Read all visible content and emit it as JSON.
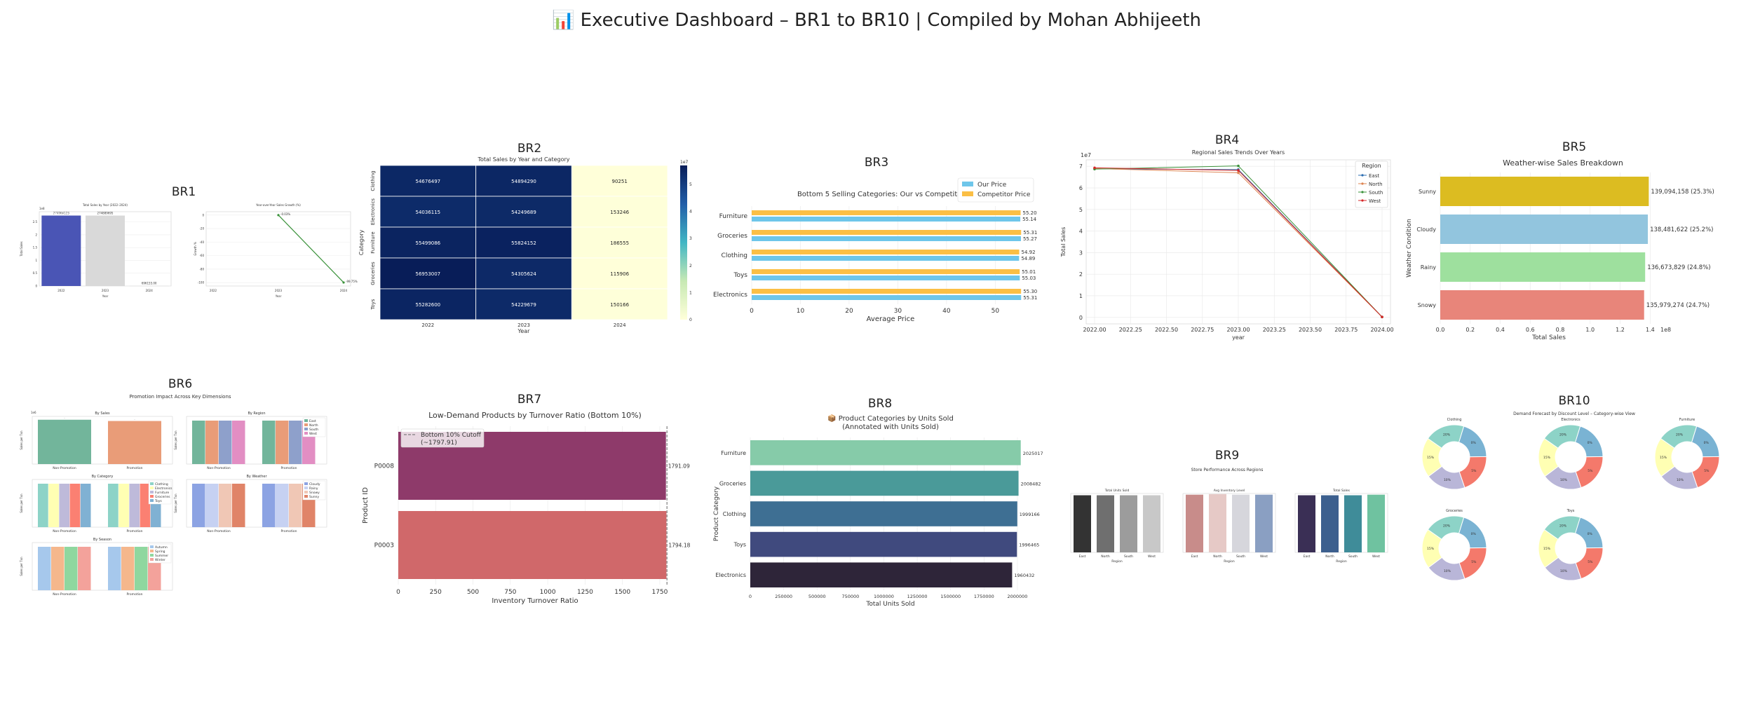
{
  "page": {
    "title": "📊 Executive Dashboard – BR1 to BR10 | Compiled by Mohan Abhijeeth"
  },
  "panels": {
    "br1": "BR1",
    "br2": "BR2",
    "br3": "BR3",
    "br4": "BR4",
    "br5": "BR5",
    "br6": "BR6",
    "br7": "BR7",
    "br8": "BR8",
    "br9": "BR9",
    "br10": "BR10"
  },
  "chart_data": [
    {
      "id": "br1a",
      "type": "bar",
      "title": "Total Sales by Year (2022–2024)",
      "categories": [
        "2022",
        "2023",
        "2024"
      ],
      "values": [
        274966123,
        274889695,
        696155
      ],
      "value_labels": [
        "274966123",
        "274889695",
        "696155.00"
      ],
      "top_text": "Overall Year 1",
      "colors": [
        "#4a55b5",
        "#d9d9d9",
        "#d9d9d9"
      ],
      "xlabel": "Year",
      "ylabel": "Total Sales"
    },
    {
      "id": "br1b",
      "type": "line",
      "title": "Year-over-Year Sales Growth (%)",
      "x": [
        "2022",
        "2023",
        "2024"
      ],
      "points": [
        {
          "x": "2023",
          "y": -0.03
        },
        {
          "x": "2024",
          "y": -99.75
        }
      ],
      "xlabel": "Year",
      "ylabel": "Growth %"
    },
    {
      "id": "br2",
      "type": "heatmap",
      "title": "Total Sales by Year and Category",
      "rows": [
        "Clothing",
        "Electronics",
        "Furniture",
        "Groceries",
        "Toys"
      ],
      "cols": [
        "2022",
        "2023",
        "2024"
      ],
      "values": [
        [
          54676497,
          54894290,
          90251
        ],
        [
          54036115,
          54249689,
          153246
        ],
        [
          55499086,
          55824152,
          186555
        ],
        [
          56953007,
          54305624,
          115906
        ],
        [
          55282600,
          54229679,
          150166
        ]
      ],
      "xlabel": "Year",
      "ylabel": "Category",
      "colorbar_ticks": [
        "0",
        "1",
        "2",
        "3",
        "4",
        "5"
      ],
      "colorbar_exp": "1e7"
    },
    {
      "id": "br3",
      "type": "bar",
      "title": "Bottom 5 Selling Categories: Our vs Competitor Price",
      "categories": [
        "Furniture",
        "Groceries",
        "Clothing",
        "Toys",
        "Electronics"
      ],
      "series": [
        {
          "name": "Our Price",
          "values": [
            55.14,
            55.27,
            54.89,
            55.03,
            55.31
          ],
          "color": "#6ec6ea"
        },
        {
          "name": "Competitor Price",
          "values": [
            55.2,
            55.31,
            54.92,
            55.01,
            55.3
          ],
          "color": "#fbbf45"
        }
      ],
      "xlabel": "Average Price",
      "xticks": [
        "0",
        "10",
        "20",
        "30",
        "40",
        "50"
      ]
    },
    {
      "id": "br4",
      "type": "line",
      "title": "Regional Sales Trends Over Years",
      "xticks": [
        "2022.00",
        "2022.25",
        "2022.50",
        "2022.75",
        "2023.00",
        "2023.25",
        "2023.50",
        "2023.75",
        "2024.00"
      ],
      "yticks": [
        "0",
        "1",
        "2",
        "3",
        "4",
        "5",
        "6",
        "7"
      ],
      "y_exp": "1e7",
      "xlabel": "year",
      "ylabel": "Total Sales",
      "legend_title": "Region",
      "series": [
        {
          "name": "East",
          "x": [
            2022,
            2023,
            2024
          ],
          "y": [
            6.88,
            6.85,
            0.02
          ],
          "color": "#2b6cb0"
        },
        {
          "name": "North",
          "x": [
            2022,
            2023,
            2024
          ],
          "y": [
            6.9,
            6.7,
            0.02
          ],
          "color": "#dd8452"
        },
        {
          "name": "South",
          "x": [
            2022,
            2023,
            2024
          ],
          "y": [
            6.87,
            7.02,
            0.02
          ],
          "color": "#3a923a"
        },
        {
          "name": "West",
          "x": [
            2022,
            2023,
            2024
          ],
          "y": [
            6.93,
            6.81,
            0.02
          ],
          "color": "#d62728"
        }
      ]
    },
    {
      "id": "br5",
      "type": "bar",
      "title": "Weather-wise Sales Breakdown",
      "categories": [
        "Sunny",
        "Cloudy",
        "Rainy",
        "Snowy"
      ],
      "values": [
        139094158,
        138481622,
        136673829,
        135979274
      ],
      "value_labels": [
        "139,094,158 (25.3%)",
        "138,481,622 (25.2%)",
        "136,673,829 (24.8%)",
        "135,979,274 (24.7%)"
      ],
      "colors": [
        "#dcbc21",
        "#92c5de",
        "#9ee09e",
        "#e8857a"
      ],
      "xlabel": "Total Sales",
      "ylabel": "Weather Condition",
      "xticks": [
        "0.0",
        "0.2",
        "0.4",
        "0.6",
        "0.8",
        "1.0",
        "1.2",
        "1.4"
      ],
      "x_exp": "1e8"
    },
    {
      "id": "br6",
      "type": "bar",
      "title": "Promotion Impact Across Key Dimensions",
      "groups": [
        "Non-Promotion",
        "Promotion"
      ],
      "subplots": [
        {
          "name": "By Sales",
          "values": [
            2.79,
            2.71
          ]
        },
        {
          "name": "By Region",
          "legend": [
            "East",
            "North",
            "South",
            "West"
          ]
        },
        {
          "name": "By Category",
          "legend": [
            "Clothing",
            "Electronics",
            "Furniture",
            "Groceries",
            "Toys"
          ]
        },
        {
          "name": "By Weather",
          "legend": [
            "Cloudy",
            "Rainy",
            "Snowy",
            "Sunny"
          ]
        },
        {
          "name": "By Season",
          "legend": [
            "Autumn",
            "Spring",
            "Summer",
            "Winter"
          ]
        }
      ],
      "ylabel": "Sales per Txn"
    },
    {
      "id": "br7",
      "type": "bar",
      "title": "Low-Demand Products by Turnover Ratio (Bottom 10%)",
      "categories": [
        "P0008",
        "P0003"
      ],
      "values": [
        1791.09,
        1794.18
      ],
      "value_labels": [
        "1791.09",
        "1794.18"
      ],
      "colors": [
        "#8e3a6a",
        "#d0686a"
      ],
      "cutoff": 1797.91,
      "legend": [
        "Bottom 10% Cutoff",
        "(~1797.91)"
      ],
      "xlabel": "Inventory Turnover Ratio",
      "ylabel": "Product ID",
      "xticks": [
        0,
        250,
        500,
        750,
        1000,
        1250,
        1500,
        1750
      ]
    },
    {
      "id": "br8",
      "type": "bar",
      "title": "📦 Product Categories by Units Sold",
      "subtitle": "(Annotated with Units Sold)",
      "categories": [
        "Furniture",
        "Groceries",
        "Clothing",
        "Toys",
        "Electronics"
      ],
      "values": [
        2025017,
        2008482,
        1999166,
        1996465,
        1960432
      ],
      "value_labels": [
        "2025017",
        "2008482",
        "1999166",
        "1996465",
        "1960432"
      ],
      "colors": [
        "#86cba9",
        "#4a9a99",
        "#3e6f93",
        "#404a7e",
        "#2e2539"
      ],
      "xlabel": "Total Units Sold",
      "ylabel": "Product Category",
      "xticks": [
        "0",
        "250000",
        "500000",
        "750000",
        "1000000",
        "1250000",
        "1500000",
        "1750000",
        "2000000"
      ]
    },
    {
      "id": "br9",
      "type": "bar",
      "title": "Store Performance Across Regions",
      "categories": [
        "East",
        "North",
        "South",
        "West"
      ],
      "subplots": [
        {
          "name": "Total Units Sold",
          "colors": [
            "#333333",
            "#6f6f6f",
            "#9c9c9c",
            "#c8c8c8"
          ]
        },
        {
          "name": "Avg Inventory Level",
          "colors": [
            "#c88c8a",
            "#e6c9c6",
            "#d6d6dc",
            "#8a9fc2"
          ]
        },
        {
          "name": "Total Sales",
          "colors": [
            "#3a2f55",
            "#3c5f8e",
            "#3f8c99",
            "#6fc2a0"
          ]
        }
      ],
      "xlabel": "Region"
    },
    {
      "id": "br10",
      "type": "pie",
      "title": "Demand Forecast by Discount Level – Category-wise View",
      "charts": [
        "Clothing",
        "Electronics",
        "Furniture",
        "Groceries",
        "Toys"
      ],
      "slices": [
        "0%",
        "5%",
        "10%",
        "15%",
        "20%"
      ],
      "values": [
        20,
        20,
        20,
        20,
        20
      ],
      "colors": [
        "#7ab3d3",
        "#f4796b",
        "#b9b6d8",
        "#ffffb3",
        "#8dd3c7"
      ]
    }
  ]
}
